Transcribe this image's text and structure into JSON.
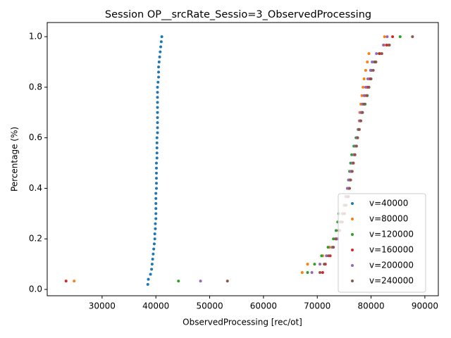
{
  "chart_data": {
    "type": "scatter",
    "title": "Session OP__srcRate_Sessio=3_ObservedProcessing",
    "x_label": "ObservedProcessing [rec/ot]",
    "y_label": "Percentage (%)",
    "xlim": [
      19800,
      92500
    ],
    "ylim": [
      -0.025,
      1.056
    ],
    "xticks": [
      30000,
      40000,
      50000,
      60000,
      70000,
      80000,
      90000
    ],
    "yticks": [
      {
        "value": 0,
        "label": "0.0"
      },
      0.2,
      0.4,
      0.6,
      0.8,
      {
        "value": 1,
        "label": "1.0"
      }
    ],
    "legend": "lower right",
    "series": [
      {
        "name": "v=40000",
        "color": "#1f77b4",
        "x": [
          38500,
          38600,
          39000,
          39200,
          39300,
          39400,
          39500,
          39600,
          39700,
          39800,
          39800,
          39900,
          39900,
          40000,
          40000,
          40000,
          40000,
          40000,
          40000,
          40100,
          40100,
          40100,
          40100,
          40100,
          40100,
          40200,
          40200,
          40200,
          40200,
          40200,
          40300,
          40300,
          40300,
          40300,
          40300,
          40300,
          40300,
          40300,
          40300,
          40300,
          40400,
          40500,
          40500,
          40500,
          40600,
          40700,
          40800,
          40900,
          41000,
          41100
        ],
        "values": [
          0.02,
          0.04,
          0.06,
          0.08,
          0.1,
          0.12,
          0.14,
          0.16,
          0.18,
          0.2,
          0.22,
          0.24,
          0.26,
          0.28,
          0.3,
          0.32,
          0.34,
          0.36,
          0.38,
          0.4,
          0.42,
          0.44,
          0.46,
          0.48,
          0.5,
          0.52,
          0.54,
          0.56,
          0.58,
          0.6,
          0.62,
          0.64,
          0.66,
          0.68,
          0.7,
          0.72,
          0.74,
          0.76,
          0.78,
          0.8,
          0.82,
          0.84,
          0.86,
          0.88,
          0.9,
          0.92,
          0.94,
          0.96,
          0.98,
          1.0
        ]
      },
      {
        "name": "v=80000",
        "color": "#ff7f0e",
        "x": [
          24800,
          67200,
          68200,
          71000,
          72300,
          73600,
          74200,
          74700,
          75100,
          75400,
          75600,
          75900,
          76100,
          76300,
          76600,
          76800,
          77000,
          77300,
          77600,
          77800,
          77900,
          78100,
          78300,
          78500,
          78700,
          79000,
          79300,
          79600,
          82400,
          82500
        ],
        "values": [
          0.033,
          0.067,
          0.1,
          0.133,
          0.167,
          0.2,
          0.233,
          0.267,
          0.3,
          0.333,
          0.367,
          0.4,
          0.433,
          0.467,
          0.5,
          0.533,
          0.567,
          0.6,
          0.633,
          0.667,
          0.7,
          0.733,
          0.767,
          0.8,
          0.833,
          0.867,
          0.9,
          0.933,
          0.967,
          1.0
        ]
      },
      {
        "name": "v=120000",
        "color": "#2ca02c",
        "x": [
          44200,
          68200,
          69500,
          70800,
          72000,
          73000,
          73500,
          73800,
          74000,
          75000,
          75300,
          75600,
          75800,
          76000,
          76200,
          76400,
          76800,
          77200,
          77600,
          78000,
          78400,
          78900,
          79300,
          79600,
          79800,
          80000,
          80600,
          81500,
          83300,
          85400
        ],
        "values": [
          0.033,
          0.067,
          0.1,
          0.133,
          0.167,
          0.2,
          0.233,
          0.267,
          0.3,
          0.333,
          0.367,
          0.4,
          0.433,
          0.467,
          0.5,
          0.533,
          0.567,
          0.6,
          0.633,
          0.667,
          0.7,
          0.733,
          0.767,
          0.8,
          0.833,
          0.867,
          0.9,
          0.933,
          0.967,
          1.0
        ]
      },
      {
        "name": "v=160000",
        "color": "#d62728",
        "x": [
          23300,
          71000,
          71500,
          72400,
          72800,
          73500,
          74000,
          74300,
          74700,
          75200,
          75600,
          75900,
          76100,
          76400,
          76700,
          77000,
          77200,
          77500,
          77800,
          78000,
          78200,
          78500,
          78800,
          79300,
          79800,
          80000,
          80800,
          81600,
          82900,
          84000
        ],
        "values": [
          0.033,
          0.067,
          0.1,
          0.133,
          0.167,
          0.2,
          0.233,
          0.267,
          0.3,
          0.333,
          0.367,
          0.4,
          0.433,
          0.467,
          0.5,
          0.533,
          0.567,
          0.6,
          0.633,
          0.667,
          0.7,
          0.733,
          0.767,
          0.8,
          0.833,
          0.867,
          0.9,
          0.933,
          0.967,
          1.0
        ]
      },
      {
        "name": "v=200000",
        "color": "#9467bd",
        "x": [
          48300,
          69000,
          70500,
          71700,
          72800,
          73800,
          74100,
          74400,
          74700,
          75000,
          75300,
          75600,
          75900,
          76200,
          76500,
          76800,
          77100,
          77400,
          77700,
          77900,
          78100,
          78400,
          78700,
          79000,
          79400,
          79900,
          80200,
          81000,
          82300,
          83000
        ],
        "values": [
          0.033,
          0.067,
          0.1,
          0.133,
          0.167,
          0.2,
          0.233,
          0.267,
          0.3,
          0.333,
          0.367,
          0.4,
          0.433,
          0.467,
          0.5,
          0.533,
          0.567,
          0.6,
          0.633,
          0.667,
          0.7,
          0.733,
          0.767,
          0.8,
          0.833,
          0.867,
          0.9,
          0.933,
          0.967,
          1.0
        ]
      },
      {
        "name": "v=240000",
        "color": "#8c564b",
        "x": [
          53300,
          70500,
          71300,
          72100,
          73000,
          73400,
          74000,
          74600,
          75000,
          75300,
          75800,
          76000,
          76200,
          76500,
          76700,
          77000,
          77300,
          77500,
          77800,
          78100,
          78400,
          78700,
          79200,
          79600,
          80000,
          80400,
          80900,
          82000,
          83400,
          87700
        ],
        "values": [
          0.033,
          0.067,
          0.1,
          0.133,
          0.167,
          0.2,
          0.233,
          0.267,
          0.3,
          0.333,
          0.367,
          0.4,
          0.433,
          0.467,
          0.5,
          0.533,
          0.567,
          0.6,
          0.633,
          0.667,
          0.7,
          0.733,
          0.767,
          0.8,
          0.833,
          0.867,
          0.9,
          0.933,
          0.967,
          1.0
        ]
      }
    ]
  }
}
